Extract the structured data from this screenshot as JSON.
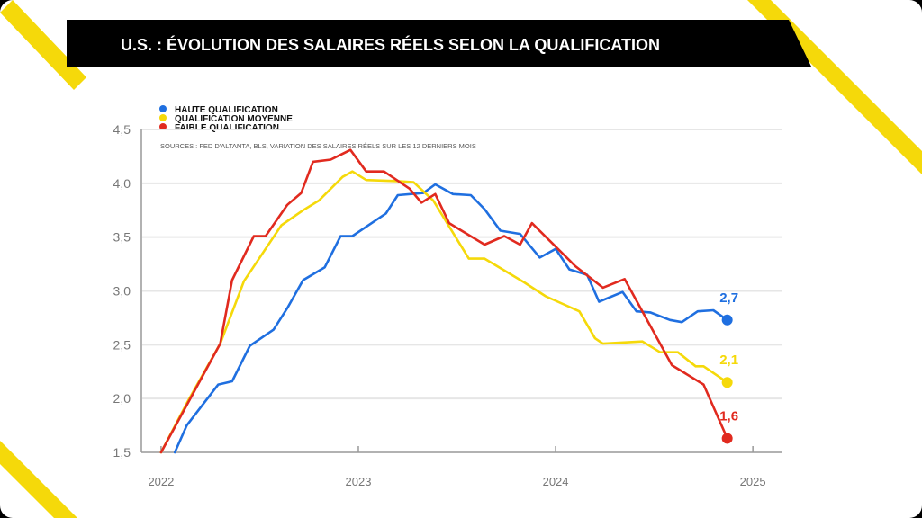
{
  "header": {
    "title": "U.S. : ÉVOLUTION DES SALAIRES RÉELS SELON LA QUALIFICATION"
  },
  "source_note": "SOURCES : FED D'ALTANTA, BLS, VARIATION DES SALAIRES RÉELS SUR LES 12 DERNIERS MOIS",
  "colors": {
    "title_bar": "#000000",
    "accent_stripe": "#f5d90a",
    "grid": "#e6e6e6",
    "axis": "#999999"
  },
  "chart_data": {
    "type": "line",
    "title": "U.S. : ÉVOLUTION DES SALAIRES RÉELS SELON LA QUALIFICATION",
    "xlabel": "",
    "ylabel": "",
    "xlim": [
      2021.9,
      2025.15
    ],
    "ylim": [
      1.5,
      4.5
    ],
    "x_ticks": [
      "2022",
      "2023",
      "2024",
      "2025"
    ],
    "y_ticks": [
      "1,5",
      "2,0",
      "2,5",
      "3,0",
      "3,5",
      "4,0",
      "4,5"
    ],
    "grid": "horizontal",
    "legend_position": "top-left",
    "series": [
      {
        "name": "HAUTE QUALIFICATION",
        "color": "#1f6fe0",
        "end_label": "2,7",
        "points": [
          [
            2022.07,
            1.5
          ],
          [
            2022.13,
            1.75
          ],
          [
            2022.29,
            2.13
          ],
          [
            2022.36,
            2.16
          ],
          [
            2022.45,
            2.49
          ],
          [
            2022.57,
            2.64
          ],
          [
            2022.64,
            2.84
          ],
          [
            2022.72,
            3.1
          ],
          [
            2022.83,
            3.22
          ],
          [
            2022.91,
            3.51
          ],
          [
            2022.97,
            3.51
          ],
          [
            2023.14,
            3.72
          ],
          [
            2023.2,
            3.89
          ],
          [
            2023.33,
            3.91
          ],
          [
            2023.39,
            3.99
          ],
          [
            2023.48,
            3.9
          ],
          [
            2023.57,
            3.89
          ],
          [
            2023.64,
            3.76
          ],
          [
            2023.72,
            3.56
          ],
          [
            2023.82,
            3.53
          ],
          [
            2023.92,
            3.31
          ],
          [
            2024.0,
            3.39
          ],
          [
            2024.07,
            3.2
          ],
          [
            2024.16,
            3.15
          ],
          [
            2024.22,
            2.9
          ],
          [
            2024.34,
            2.99
          ],
          [
            2024.41,
            2.81
          ],
          [
            2024.48,
            2.8
          ],
          [
            2024.58,
            2.73
          ],
          [
            2024.64,
            2.71
          ],
          [
            2024.72,
            2.81
          ],
          [
            2024.8,
            2.82
          ],
          [
            2024.87,
            2.73
          ]
        ]
      },
      {
        "name": "QUALIFICATION MOYENNE",
        "color": "#f5d90a",
        "end_label": "2,1",
        "points": [
          [
            2022.0,
            1.5
          ],
          [
            2022.14,
            1.99
          ],
          [
            2022.3,
            2.51
          ],
          [
            2022.42,
            3.09
          ],
          [
            2022.61,
            3.61
          ],
          [
            2022.72,
            3.75
          ],
          [
            2022.8,
            3.84
          ],
          [
            2022.92,
            4.06
          ],
          [
            2022.97,
            4.11
          ],
          [
            2023.04,
            4.03
          ],
          [
            2023.2,
            4.02
          ],
          [
            2023.28,
            4.01
          ],
          [
            2023.38,
            3.84
          ],
          [
            2023.56,
            3.3
          ],
          [
            2023.64,
            3.3
          ],
          [
            2023.84,
            3.08
          ],
          [
            2023.95,
            2.95
          ],
          [
            2024.12,
            2.81
          ],
          [
            2024.2,
            2.56
          ],
          [
            2024.24,
            2.51
          ],
          [
            2024.44,
            2.53
          ],
          [
            2024.53,
            2.43
          ],
          [
            2024.62,
            2.43
          ],
          [
            2024.71,
            2.3
          ],
          [
            2024.75,
            2.3
          ],
          [
            2024.87,
            2.15
          ]
        ]
      },
      {
        "name": "FAIBLE QUALIFICATION",
        "color": "#e12a1f",
        "end_label": "1,6",
        "points": [
          [
            2022.0,
            1.5
          ],
          [
            2022.3,
            2.51
          ],
          [
            2022.36,
            3.1
          ],
          [
            2022.47,
            3.51
          ],
          [
            2022.53,
            3.51
          ],
          [
            2022.64,
            3.8
          ],
          [
            2022.71,
            3.91
          ],
          [
            2022.77,
            4.2
          ],
          [
            2022.86,
            4.22
          ],
          [
            2022.96,
            4.31
          ],
          [
            2023.04,
            4.11
          ],
          [
            2023.13,
            4.11
          ],
          [
            2023.26,
            3.95
          ],
          [
            2023.32,
            3.82
          ],
          [
            2023.39,
            3.9
          ],
          [
            2023.46,
            3.63
          ],
          [
            2023.64,
            3.43
          ],
          [
            2023.74,
            3.51
          ],
          [
            2023.82,
            3.43
          ],
          [
            2023.88,
            3.63
          ],
          [
            2024.1,
            3.23
          ],
          [
            2024.24,
            3.03
          ],
          [
            2024.35,
            3.11
          ],
          [
            2024.47,
            2.71
          ],
          [
            2024.59,
            2.31
          ],
          [
            2024.75,
            2.13
          ],
          [
            2024.87,
            1.63
          ]
        ]
      }
    ]
  }
}
